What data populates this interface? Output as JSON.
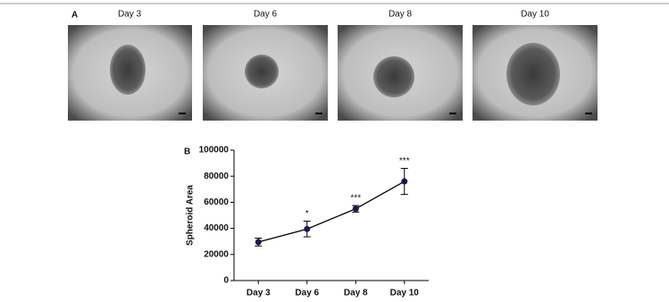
{
  "panel_a": {
    "label": "A",
    "images": [
      "Day 3",
      "Day 6",
      "Day 8",
      "Day 10"
    ]
  },
  "chart_data": {
    "type": "line",
    "panel_label": "B",
    "y_label": "Spheroid Area",
    "categories": [
      "Day 3",
      "Day 6",
      "Day 8",
      "Day 10"
    ],
    "values": [
      29500,
      39500,
      55000,
      76000
    ],
    "errors": [
      3000,
      6000,
      2500,
      10000
    ],
    "annotations": [
      null,
      "*",
      "***",
      "***"
    ],
    "color": "#1a1a4a",
    "ylim": [
      0,
      100000
    ],
    "yticks": [
      0,
      20000,
      40000,
      60000,
      80000,
      100000
    ]
  }
}
